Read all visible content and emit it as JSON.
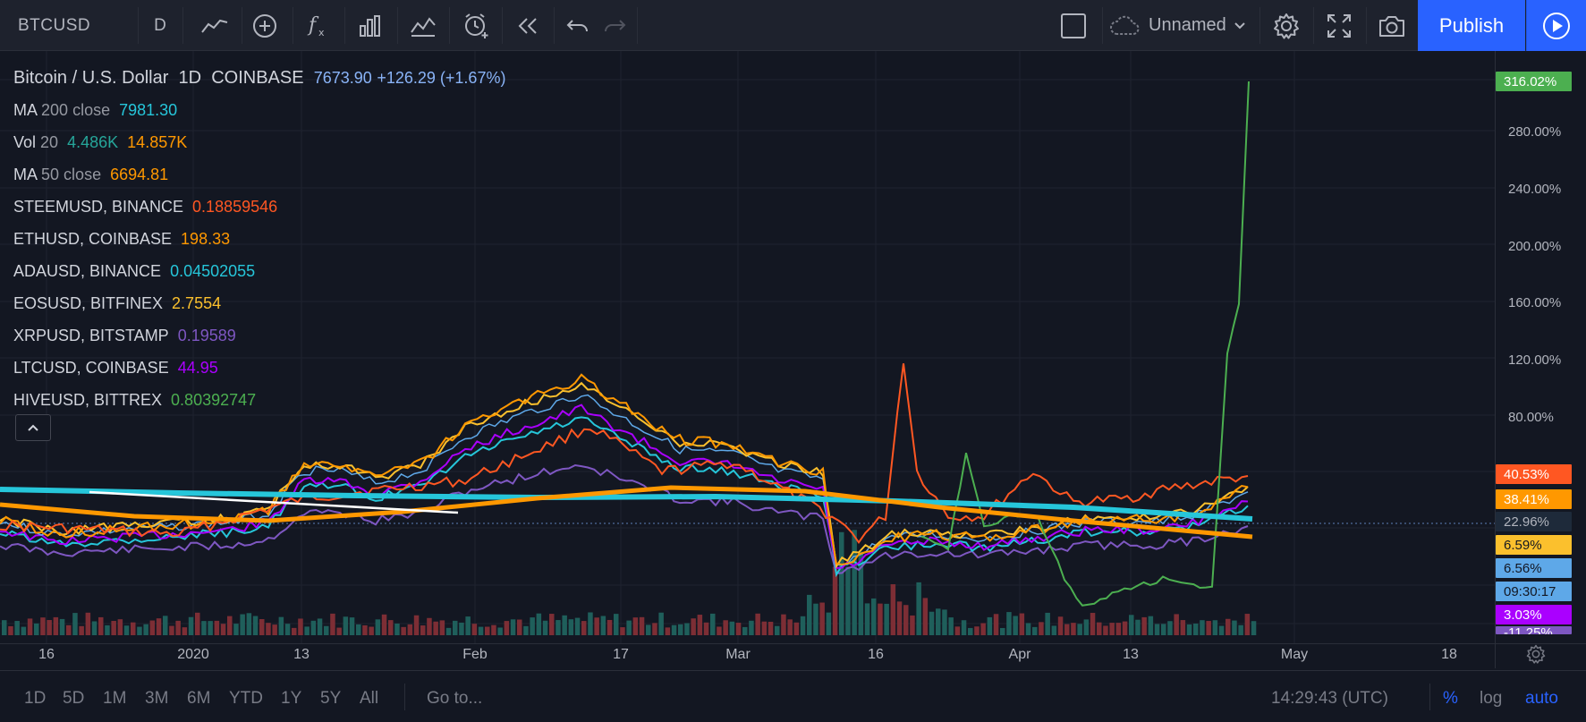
{
  "toolbar": {
    "symbol": "BTCUSD",
    "interval": "D",
    "layout_name": "Unnamed",
    "publish_label": "Publish"
  },
  "legend": {
    "main": {
      "title": "Bitcoin / U.S. Dollar",
      "interval": "1D",
      "exchange": "COINBASE",
      "price": "7673.90",
      "change": "+126.29 (+1.67%)"
    },
    "indicators": [
      {
        "name": "MA",
        "params": "200 close",
        "values": [
          "7981.30"
        ],
        "colors": [
          "#26c6da"
        ]
      },
      {
        "name": "Vol",
        "params": "20",
        "values": [
          "4.486K",
          "14.857K"
        ],
        "colors": [
          "#26a69a",
          "#ff9800"
        ]
      },
      {
        "name": "MA",
        "params": "50 close",
        "values": [
          "6694.81"
        ],
        "colors": [
          "#ff9800"
        ]
      }
    ],
    "compares": [
      {
        "name": "STEEMUSD, BINANCE",
        "value": "0.18859546",
        "color": "#ff5722"
      },
      {
        "name": "ETHUSD, COINBASE",
        "value": "198.33",
        "color": "#ff9800"
      },
      {
        "name": "ADAUSD, BINANCE",
        "value": "0.04502055",
        "color": "#26c6da"
      },
      {
        "name": "EOSUSD, BITFINEX",
        "value": "2.7554",
        "color": "#fbc02d"
      },
      {
        "name": "XRPUSD, BITSTAMP",
        "value": "0.19589",
        "color": "#7e57c2"
      },
      {
        "name": "LTCUSD, COINBASE",
        "value": "44.95",
        "color": "#aa00ff"
      },
      {
        "name": "HIVEUSD, BITTREX",
        "value": "0.80392747",
        "color": "#4caf50"
      }
    ]
  },
  "price_scale": {
    "ticks": [
      "316.02%",
      "280.00%",
      "240.00%",
      "200.00%",
      "160.00%",
      "120.00%",
      "80.00%"
    ],
    "tags": [
      {
        "text": "316.02%",
        "bg": "#4caf50",
        "fg": "#ffffff"
      },
      {
        "text": "40.53%",
        "bg": "#ff5722",
        "fg": "#ffffff"
      },
      {
        "text": "38.41%",
        "bg": "#ff9800",
        "fg": "#ffffff"
      },
      {
        "text": "22.96%",
        "bg": "#1e2a3a",
        "fg": "#b2b5be"
      },
      {
        "text": "6.59%",
        "bg": "#fbc02d",
        "fg": "#131722"
      },
      {
        "text": "6.56%",
        "bg": "#5ea8e8",
        "fg": "#131722"
      },
      {
        "text": "09:30:17",
        "bg": "#5ea8e8",
        "fg": "#131722"
      },
      {
        "text": "3.03%",
        "bg": "#aa00ff",
        "fg": "#ffffff"
      },
      {
        "text": "-11.25%",
        "bg": "#7e57c2",
        "fg": "#ffffff"
      }
    ]
  },
  "time_axis": {
    "labels": [
      "16",
      "2020",
      "13",
      "Feb",
      "17",
      "Mar",
      "16",
      "Apr",
      "13",
      "May",
      "18"
    ]
  },
  "bottombar": {
    "ranges": [
      "1D",
      "5D",
      "1M",
      "3M",
      "6M",
      "YTD",
      "1Y",
      "5Y",
      "All"
    ],
    "goto_label": "Go to...",
    "clock": "14:29:43 (UTC)",
    "percent_label": "%",
    "log_label": "log",
    "auto_label": "auto"
  }
}
